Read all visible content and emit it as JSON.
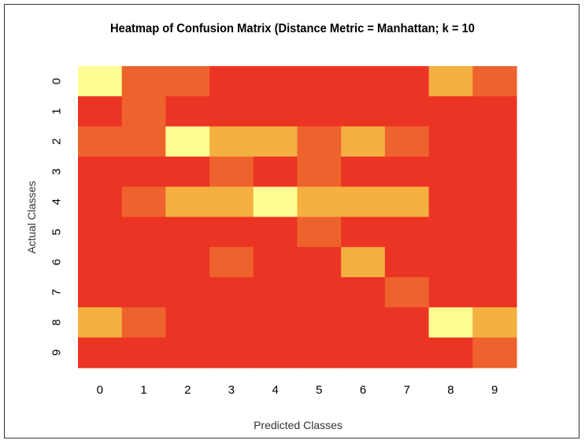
{
  "chart_data": {
    "type": "heatmap",
    "title": "Heatmap of Confusion Matrix (Distance Metric = Manhattan; k = 10",
    "xlabel": "Predicted Classes",
    "ylabel": "Actual Classes",
    "x_categories": [
      "0",
      "1",
      "2",
      "3",
      "4",
      "5",
      "6",
      "7",
      "8",
      "9"
    ],
    "y_categories": [
      "0",
      "1",
      "2",
      "3",
      "4",
      "5",
      "6",
      "7",
      "8",
      "9"
    ],
    "levels": [
      [
        3,
        1,
        1,
        0,
        0,
        0,
        0,
        0,
        2,
        1
      ],
      [
        0,
        1,
        0,
        0,
        0,
        0,
        0,
        0,
        0,
        0
      ],
      [
        1,
        1,
        3,
        2,
        2,
        1,
        2,
        1,
        0,
        0
      ],
      [
        0,
        0,
        0,
        1,
        0,
        1,
        0,
        0,
        0,
        0
      ],
      [
        0,
        1,
        2,
        2,
        3,
        2,
        2,
        2,
        0,
        0
      ],
      [
        0,
        0,
        0,
        0,
        0,
        1,
        0,
        0,
        0,
        0
      ],
      [
        0,
        0,
        0,
        1,
        0,
        0,
        2,
        0,
        0,
        0
      ],
      [
        0,
        0,
        0,
        0,
        0,
        0,
        0,
        1,
        0,
        0
      ],
      [
        2,
        1,
        0,
        0,
        0,
        0,
        0,
        0,
        3,
        2
      ],
      [
        0,
        0,
        0,
        0,
        0,
        0,
        0,
        0,
        0,
        1
      ]
    ],
    "palette": [
      "#EC3424",
      "#EE632D",
      "#F4B041",
      "#FDFD94"
    ],
    "grid": false,
    "legend": "none"
  }
}
